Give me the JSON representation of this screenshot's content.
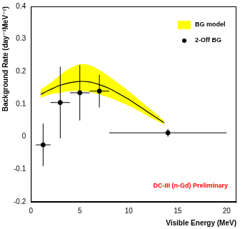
{
  "chart_data": {
    "type": "scatter",
    "x_label": "Visible Energy (MeV)",
    "y_label": "Background Rate (day⁻¹MeV⁻¹)",
    "xlim": [
      0,
      21
    ],
    "xticks": [
      0,
      5,
      10,
      15,
      20
    ],
    "ylim": [
      -0.2,
      0.4
    ],
    "yticks": [
      -0.2,
      -0.1,
      0,
      0.1,
      0.2,
      0.3,
      0.4
    ],
    "grid": false,
    "legend": "top right",
    "annotations": [
      {
        "text": "DC-III (n-Gd) Preliminary",
        "color": "#ff0000"
      }
    ],
    "series": [
      {
        "name": "BG model",
        "type": "line",
        "color": "#ffff00",
        "line_style": "solid",
        "x": [
          1,
          2,
          3,
          4,
          5,
          6,
          7,
          8,
          9,
          10,
          11,
          12,
          13,
          13.6
        ],
        "values": [
          0.13,
          0.145,
          0.158,
          0.166,
          0.17,
          0.168,
          0.16,
          0.148,
          0.132,
          0.115,
          0.095,
          0.075,
          0.055,
          0.043
        ],
        "lower": [
          0.12,
          0.13,
          0.135,
          0.14,
          0.14,
          0.138,
          0.13,
          0.12,
          0.108,
          0.095,
          0.08,
          0.063,
          0.047,
          0.038
        ],
        "upper": [
          0.145,
          0.165,
          0.19,
          0.21,
          0.222,
          0.22,
          0.205,
          0.185,
          0.163,
          0.14,
          0.115,
          0.09,
          0.065,
          0.05
        ]
      },
      {
        "name": "2-Off BG",
        "type": "scatter",
        "color": "#000000",
        "marker": "circle",
        "x": [
          1.25,
          3,
          5,
          7,
          14
        ],
        "values": [
          -0.025,
          0.105,
          0.135,
          0.14,
          0.012
        ],
        "x_ranges": [
          [
            0.5,
            2
          ],
          [
            2,
            4
          ],
          [
            4,
            6
          ],
          [
            6,
            8
          ],
          [
            8,
            20
          ]
        ],
        "y_errors": [
          0.065,
          0.11,
          0.085,
          0.05,
          0.012
        ]
      }
    ]
  }
}
